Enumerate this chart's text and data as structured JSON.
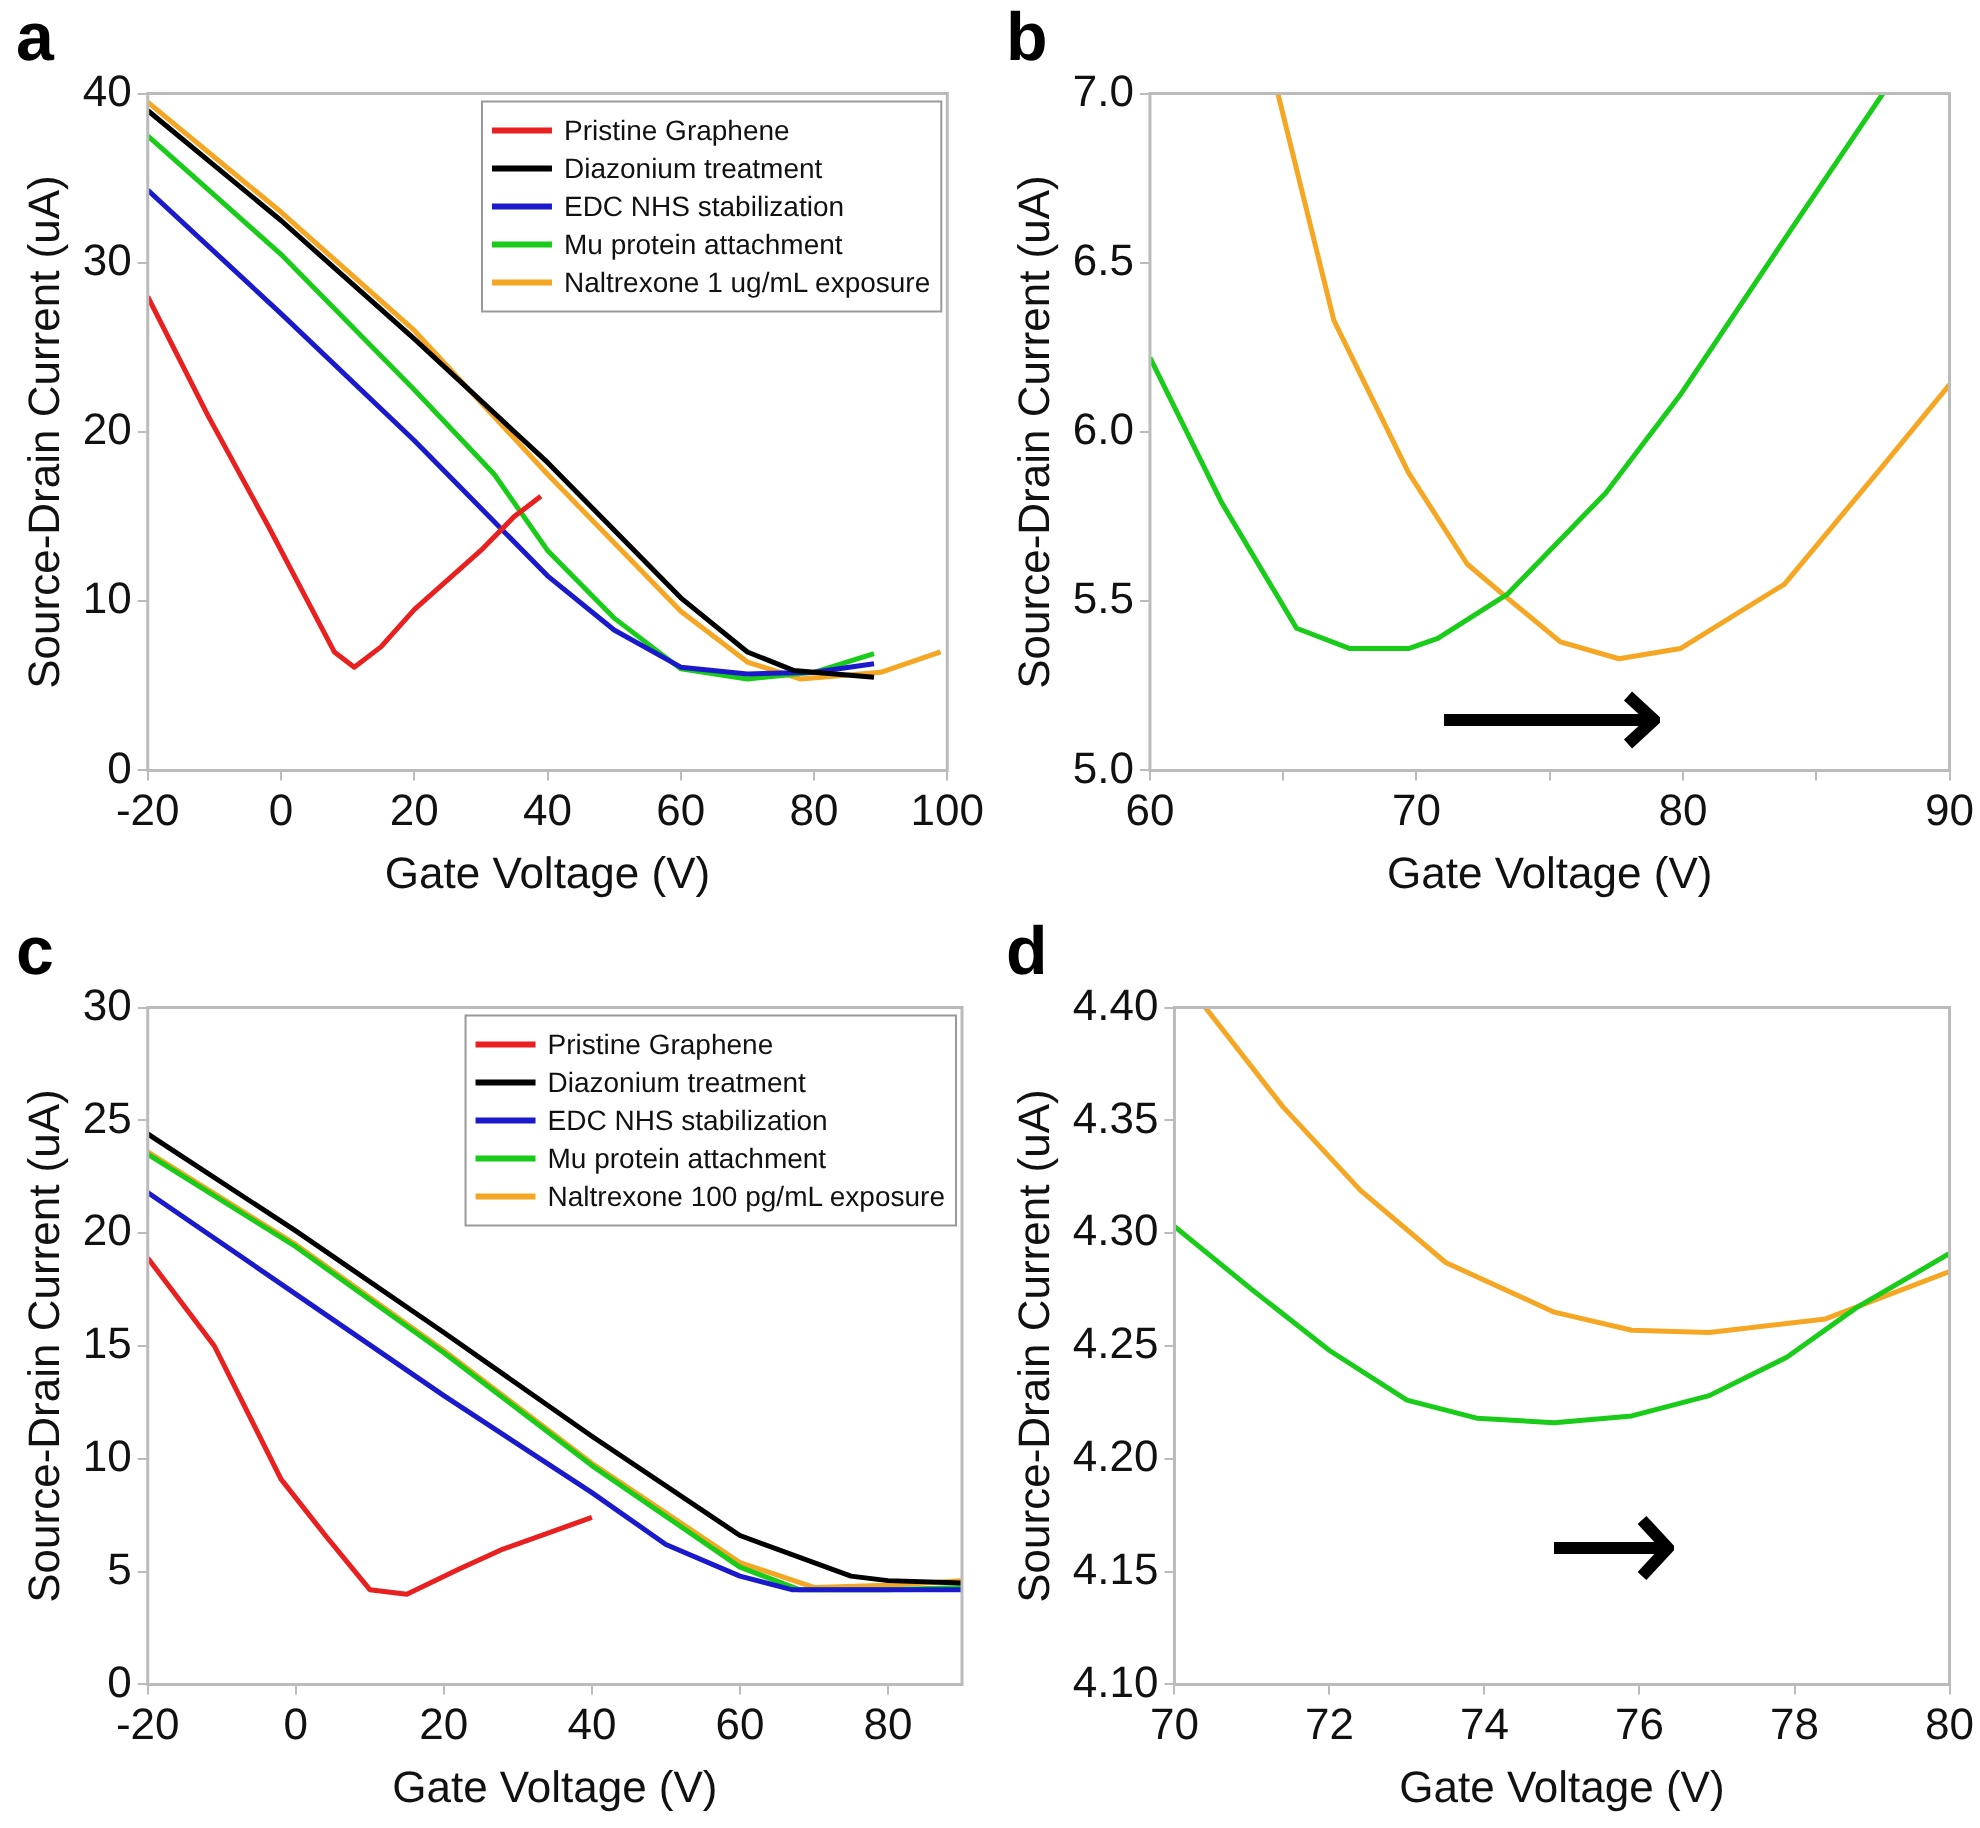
{
  "chart_data": [
    {
      "type": "line",
      "title": "a",
      "xlabel": "Gate Voltage (V)",
      "ylabel": "Source-Drain Current (uA)",
      "xlim": [
        -20,
        100
      ],
      "ylim": [
        0,
        40
      ],
      "xticks": [
        -20,
        0,
        20,
        40,
        60,
        80,
        100
      ],
      "yticks": [
        0,
        10,
        20,
        30,
        40
      ],
      "grid": false,
      "legend": "top right",
      "marker": "none",
      "line_style": "solid",
      "series": [
        {
          "name": "Pristine Graphene",
          "color": "#e8201f",
          "x": [
            -20,
            -11,
            -2,
            4,
            8,
            11,
            15,
            20,
            30,
            35,
            39
          ],
          "values": [
            28,
            21,
            14.5,
            10,
            7,
            6.1,
            7.3,
            9.5,
            13,
            15,
            16.2
          ]
        },
        {
          "name": "Diazonium treatment",
          "color": "#000000",
          "x": [
            -20,
            0,
            20,
            40,
            60,
            70,
            77,
            80,
            89
          ],
          "values": [
            39,
            32.5,
            25.5,
            18.2,
            10.2,
            7,
            5.9,
            5.8,
            5.5
          ]
        },
        {
          "name": "EDC NHS stabilization",
          "color": "#1a1acc",
          "x": [
            -20,
            0,
            20,
            40,
            50,
            60,
            70,
            80,
            89
          ],
          "values": [
            34.3,
            27,
            19.5,
            11.5,
            8.3,
            6.1,
            5.7,
            5.8,
            6.3
          ]
        },
        {
          "name": "Mu protein attachment",
          "color": "#19cc19",
          "x": [
            -20,
            0,
            20,
            32,
            40,
            50,
            60,
            70,
            80,
            89
          ],
          "values": [
            37.5,
            30.5,
            22.5,
            17.5,
            13,
            9,
            6,
            5.4,
            5.8,
            6.9
          ]
        },
        {
          "name": "Naltrexone 1 ug/mL exposure",
          "color": "#f5a623",
          "x": [
            -20,
            0,
            20,
            40,
            60,
            70,
            78,
            90,
            99
          ],
          "values": [
            39.5,
            33,
            26,
            17.5,
            9.4,
            6.4,
            5.4,
            5.8,
            7
          ]
        }
      ]
    },
    {
      "type": "line",
      "title": "b",
      "xlabel": "Gate Voltage (V)",
      "ylabel": "Source-Drain Current (uA)",
      "xlim": [
        60,
        90
      ],
      "ylim": [
        5,
        7
      ],
      "xticks": [
        60,
        {
          "value": 65,
          "label": null
        },
        70,
        {
          "value": 75,
          "label": null
        },
        80,
        {
          "value": 85,
          "label": null
        },
        90
      ],
      "yticks": [
        {
          "value": 5,
          "label": "5.0"
        },
        5.5,
        {
          "value": 6,
          "label": "6.0"
        },
        6.5,
        {
          "value": 7,
          "label": "7.0"
        }
      ],
      "grid": false,
      "marker": "none",
      "line_style": "solid",
      "series": [
        {
          "color": "#19cc19",
          "x": [
            60,
            62.7,
            65.5,
            67.5,
            69.7,
            70.8,
            73.4,
            77.1,
            79.9,
            83.9,
            87.5
          ],
          "values": [
            6.22,
            5.79,
            5.42,
            5.36,
            5.36,
            5.39,
            5.52,
            5.82,
            6.11,
            6.58,
            7
          ]
        },
        {
          "color": "#f5a623",
          "x": [
            64.8,
            66.9,
            69.7,
            71.9,
            73.4,
            75.4,
            77.6,
            79.9,
            83.8,
            87.5,
            90
          ],
          "values": [
            7,
            6.33,
            5.88,
            5.61,
            5.51,
            5.38,
            5.33,
            5.36,
            5.55,
            5.9,
            6.14
          ]
        }
      ]
    },
    {
      "type": "line",
      "title": "c",
      "xlabel": "Gate Voltage (V)",
      "ylabel": "Source-Drain Current (uA)",
      "xlim": [
        -20,
        90
      ],
      "ylim": [
        0,
        30
      ],
      "xticks": [
        -20,
        0,
        20,
        40,
        60,
        80
      ],
      "yticks": [
        0,
        5,
        10,
        15,
        20,
        25,
        30
      ],
      "grid": false,
      "legend": "top right",
      "marker": "none",
      "line_style": "solid",
      "series": [
        {
          "name": "Pristine Graphene",
          "color": "#e8201f",
          "x": [
            -20,
            -11,
            -2,
            4,
            10,
            15,
            22,
            28,
            40
          ],
          "values": [
            18.9,
            15,
            9.1,
            6.6,
            4.2,
            4,
            5.1,
            6,
            7.4
          ]
        },
        {
          "name": "Diazonium treatment",
          "color": "#000000",
          "x": [
            -20,
            0,
            20,
            40,
            60,
            75,
            80,
            90
          ],
          "values": [
            24.4,
            20.1,
            15.6,
            11,
            6.6,
            4.8,
            4.6,
            4.5
          ]
        },
        {
          "name": "EDC NHS stabilization",
          "color": "#1a1acc",
          "x": [
            -20,
            0,
            20,
            40,
            50,
            60,
            67,
            90
          ],
          "values": [
            21.8,
            17.3,
            12.8,
            8.5,
            6.2,
            4.8,
            4.2,
            4.2
          ]
        },
        {
          "name": "Mu protein attachment",
          "color": "#19cc19",
          "x": [
            -20,
            0,
            20,
            40,
            60,
            68,
            80,
            90
          ],
          "values": [
            23.5,
            19.4,
            14.7,
            9.7,
            5.2,
            4.2,
            4.2,
            4.3
          ]
        },
        {
          "name": "Naltrexone 100 pg/mL exposure",
          "color": "#f5a623",
          "x": [
            -20,
            0,
            20,
            40,
            60,
            70,
            80,
            90
          ],
          "values": [
            23.6,
            19.5,
            14.8,
            9.8,
            5.4,
            4.3,
            4.4,
            4.6
          ]
        }
      ]
    },
    {
      "type": "line",
      "title": "d",
      "xlabel": "Gate Voltage (V)",
      "ylabel": "Source-Drain Current (uA)",
      "xlim": [
        70,
        80
      ],
      "ylim": [
        4.1,
        4.4
      ],
      "xticks": [
        70,
        72,
        74,
        76,
        78,
        80
      ],
      "yticks": [
        {
          "value": 4.1,
          "label": "4.10"
        },
        4.15,
        {
          "value": 4.2,
          "label": "4.20"
        },
        4.25,
        {
          "value": 4.3,
          "label": "4.30"
        },
        4.35,
        {
          "value": 4.4,
          "label": "4.40"
        }
      ],
      "grid": false,
      "marker": "none",
      "line_style": "solid",
      "series": [
        {
          "color": "#19cc19",
          "x": [
            70,
            71,
            72,
            73,
            73.9,
            74.9,
            75.9,
            76.9,
            77.9,
            78.8,
            80
          ],
          "values": [
            4.303,
            4.275,
            4.248,
            4.226,
            4.218,
            4.216,
            4.219,
            4.228,
            4.245,
            4.267,
            4.291
          ]
        },
        {
          "color": "#f5a623",
          "x": [
            70.4,
            71.4,
            72.4,
            73.5,
            74.9,
            75.9,
            76.9,
            78.4,
            80
          ],
          "values": [
            4.4,
            4.356,
            4.319,
            4.287,
            4.265,
            4.257,
            4.256,
            4.262,
            4.283
          ]
        }
      ]
    }
  ]
}
